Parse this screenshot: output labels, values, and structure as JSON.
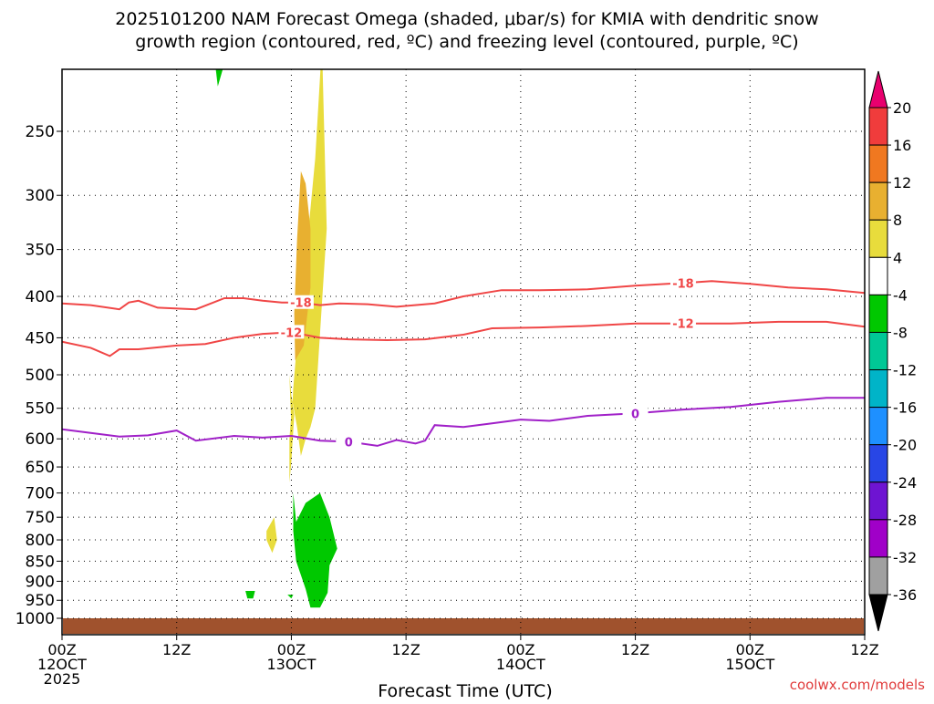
{
  "chart_data": {
    "type": "heatmap",
    "title": "2025101200 NAM Forecast Omega (shaded, μbar/s) for KMIA with dendritic snow",
    "subtitle": "growth region (contoured, red, ºC) and freezing level (contoured, purple, ºC)",
    "xlabel": "Forecast Time (UTC)",
    "ylabel": "",
    "credit": "coolwx.com/models",
    "x_hours_range": [
      0,
      84
    ],
    "y_pressure_range": [
      1000,
      200
    ],
    "y_scale": "log-pressure",
    "y_ticks": [
      "250",
      "300",
      "350",
      "400",
      "450",
      "500",
      "550",
      "600",
      "650",
      "700",
      "750",
      "800",
      "850",
      "900",
      "950",
      "1000"
    ],
    "x_ticks": [
      {
        "h": 0,
        "l1": "00Z",
        "l2": "12OCT",
        "l3": "2025"
      },
      {
        "h": 12,
        "l1": "12Z",
        "l2": "",
        "l3": ""
      },
      {
        "h": 24,
        "l1": "00Z",
        "l2": "13OCT",
        "l3": ""
      },
      {
        "h": 36,
        "l1": "12Z",
        "l2": "",
        "l3": ""
      },
      {
        "h": 48,
        "l1": "00Z",
        "l2": "14OCT",
        "l3": ""
      },
      {
        "h": 60,
        "l1": "12Z",
        "l2": "",
        "l3": ""
      },
      {
        "h": 72,
        "l1": "00Z",
        "l2": "15OCT",
        "l3": ""
      },
      {
        "h": 84,
        "l1": "12Z",
        "l2": "",
        "l3": ""
      }
    ],
    "grid": true,
    "legend": "right colorbar",
    "colorbar": {
      "labels": [
        "20",
        "16",
        "12",
        "8",
        "4",
        "-4",
        "-8",
        "-12",
        "-16",
        "-20",
        "-24",
        "-28",
        "-32",
        "-36"
      ],
      "colors": [
        "#e8006e",
        "#f03c3c",
        "#f07820",
        "#e8b030",
        "#e8dc3c",
        "#ffffff",
        "#00c800",
        "#00c896",
        "#00b4c8",
        "#1e90ff",
        "#2846e6",
        "#6e14d2",
        "#a000c8",
        "#a0a0a0",
        "#000000"
      ]
    },
    "series": [
      {
        "name": "-18",
        "color": "#f04646",
        "x": [
          0,
          3,
          6,
          7,
          8,
          10,
          14,
          17,
          19,
          21,
          23,
          25,
          27,
          29,
          32,
          35,
          39,
          42,
          46,
          50,
          55,
          60,
          65,
          68,
          72,
          76,
          80,
          84
        ],
        "y": [
          408,
          410,
          415,
          407,
          405,
          413,
          415,
          402,
          402,
          405,
          407,
          407,
          410,
          408,
          409,
          412,
          408,
          400,
          393,
          393,
          392,
          388,
          385,
          383,
          386,
          390,
          392,
          396
        ]
      },
      {
        "name": "-12",
        "color": "#f04646",
        "x": [
          0,
          3,
          5,
          6,
          8,
          12,
          15,
          18,
          21,
          24,
          27,
          30,
          34,
          38,
          42,
          45,
          50,
          55,
          60,
          65,
          70,
          75,
          80,
          84
        ],
        "y": [
          455,
          463,
          474,
          465,
          465,
          460,
          458,
          450,
          445,
          443,
          450,
          452,
          453,
          452,
          446,
          438,
          437,
          435,
          432,
          432,
          432,
          430,
          430,
          436
        ]
      },
      {
        "name": "0",
        "color": "#a020c8",
        "x": [
          0,
          3,
          6,
          9,
          12,
          14,
          18,
          21,
          24,
          27,
          30,
          33,
          35,
          37,
          38,
          39,
          42,
          45,
          48,
          51,
          55,
          60,
          65,
          70,
          75,
          80,
          84
        ],
        "y": [
          584,
          590,
          596,
          594,
          586,
          603,
          595,
          598,
          595,
          603,
          605,
          612,
          602,
          608,
          603,
          577,
          580,
          574,
          568,
          570,
          562,
          558,
          552,
          548,
          540,
          534,
          534
        ]
      }
    ],
    "bottom_band": {
      "color": "#a0522d",
      "name": "below ground"
    },
    "shaded_regions": [
      {
        "name": "positive-omega-main",
        "value": 6,
        "color": "#e8dc3c",
        "x": [
          24.0,
          24.2,
          24.5,
          25.0,
          25.7,
          26.5,
          27.2,
          27.7,
          26.5,
          26.0,
          25.5,
          25.0,
          24.6,
          24.0,
          23.8
        ],
        "y": [
          580,
          520,
          470,
          400,
          340,
          270,
          195,
          330,
          550,
          580,
          600,
          630,
          580,
          530,
          500
        ]
      },
      {
        "name": "positive-omega-core",
        "value": 11,
        "color": "#e8b030",
        "x": [
          24.4,
          25.3,
          26.0,
          26.0,
          25.5,
          25.0,
          24.6,
          24.3
        ],
        "y": [
          480,
          460,
          390,
          330,
          290,
          280,
          340,
          420
        ]
      },
      {
        "name": "positive-omega-lower",
        "value": 5,
        "color": "#e8dc3c",
        "x": [
          23.8,
          24.1,
          24.3,
          24.0,
          23.8
        ],
        "y": [
          600,
          540,
          560,
          640,
          680
        ]
      },
      {
        "name": "positive-omega-low",
        "value": 5,
        "color": "#e8dc3c",
        "x": [
          21.4,
          22.2,
          22.5,
          22.0,
          21.4
        ],
        "y": [
          780,
          750,
          800,
          830,
          800
        ]
      },
      {
        "name": "negative-omega-low",
        "value": -6,
        "color": "#00c800",
        "x": [
          24.2,
          24.5,
          25.5,
          27.0,
          28.0,
          28.8,
          28.0,
          27.8,
          27.0,
          26.0,
          25.5,
          24.5,
          24.2
        ],
        "y": [
          700,
          760,
          720,
          700,
          750,
          820,
          860,
          930,
          970,
          970,
          920,
          850,
          780
        ]
      },
      {
        "name": "negative-omega-upper",
        "value": -5,
        "color": "#00c800",
        "x": [
          16.0,
          16.4,
          16.8,
          16.3
        ],
        "y": [
          205,
          195,
          210,
          220
        ]
      },
      {
        "name": "negative-omega-small1",
        "value": -5,
        "color": "#00c800",
        "x": [
          19.2,
          20.2,
          20.0,
          19.4
        ],
        "y": [
          925,
          925,
          945,
          945
        ]
      },
      {
        "name": "negative-omega-small2",
        "value": -5,
        "color": "#00c800",
        "x": [
          23.6,
          24.2,
          24.0
        ],
        "y": [
          935,
          935,
          945
        ]
      }
    ]
  }
}
